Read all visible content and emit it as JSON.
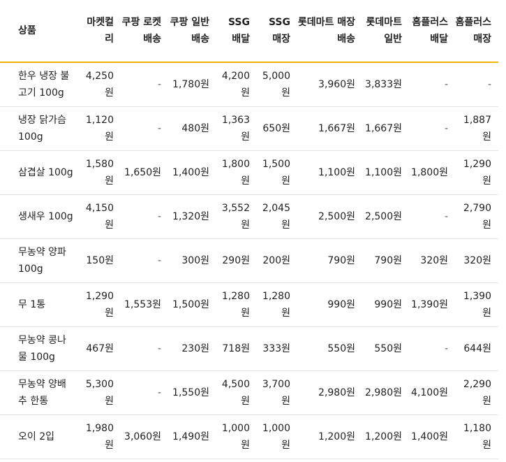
{
  "table": {
    "headers": [
      "상품",
      "마켓컬리",
      "쿠팡 로켓배송",
      "쿠팡 일반배송",
      "SSG 배달",
      "SSG 매장",
      "롯데마트 매장배송",
      "롯데마트 일반",
      "홈플러스 배달",
      "홈플러스 매장"
    ],
    "rows": [
      [
        "한우 냉장 불고기 100g",
        "4,250원",
        "-",
        "1,780원",
        "4,200원",
        "5,000원",
        "3,960원",
        "3,833원",
        "-",
        "-"
      ],
      [
        "냉장 닭가슴 100g",
        "1,120원",
        "-",
        "480원",
        "1,363원",
        "650원",
        "1,667원",
        "1,667원",
        "-",
        "1,887원"
      ],
      [
        "삼겹살 100g",
        "1,580원",
        "1,650원",
        "1,400원",
        "1,800원",
        "1,500원",
        "1,100원",
        "1,100원",
        "1,800원",
        "1,290원"
      ],
      [
        "생새우 100g",
        "4,150원",
        "-",
        "1,320원",
        "3,552원",
        "2,045원",
        "2,500원",
        "2,500원",
        "-",
        "2,790원"
      ],
      [
        "무농약 양파 100g",
        "150원",
        "-",
        "300원",
        "290원",
        "200원",
        "790원",
        "790원",
        "320원",
        "320원"
      ],
      [
        "무 1통",
        "1,290원",
        "1,553원",
        "1,500원",
        "1,280원",
        "1,280원",
        "990원",
        "990원",
        "1,390원",
        "1,390원"
      ],
      [
        "무농약 콩나물 100g",
        "467원",
        "-",
        "230원",
        "718원",
        "333원",
        "550원",
        "550원",
        "-",
        "644원"
      ],
      [
        "무농약 양배추 한통",
        "5,300원",
        "-",
        "1,550원",
        "4,500원",
        "3,700원",
        "2,980원",
        "2,980원",
        "4,100원",
        "2,290원"
      ],
      [
        "오이 2입",
        "1,980원",
        "3,060원",
        "1,490원",
        "1,000원",
        "1,000원",
        "1,200원",
        "1,200원",
        "1,400원",
        "1,180원"
      ]
    ]
  }
}
